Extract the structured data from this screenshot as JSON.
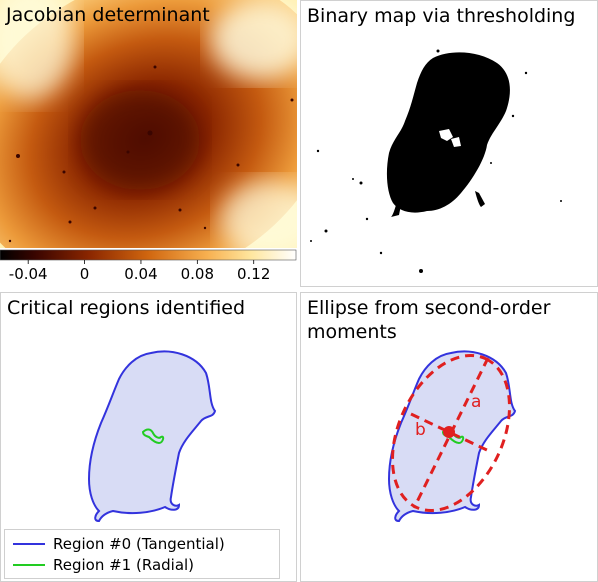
{
  "panels": {
    "jacobian": {
      "title": "Jacobian determinant"
    },
    "binary": {
      "title": "Binary map via thresholding"
    },
    "critical": {
      "title": "Critical regions identified"
    },
    "ellipse": {
      "title_line1": "Ellipse from second-order",
      "title_line2": "moments",
      "label_a": "a",
      "label_b": "b"
    }
  },
  "colorbar": {
    "ticks": [
      "-0.04",
      "0",
      "0.04",
      "0.08",
      "0.12"
    ],
    "tick_values": [
      -0.04,
      0,
      0.04,
      0.08,
      0.12
    ],
    "range": [
      -0.06,
      0.15
    ]
  },
  "legend": {
    "items": [
      {
        "label": "Region #0 (Tangential)",
        "color": "#3333dd"
      },
      {
        "label": "Region #1 (Radial)",
        "color": "#22cc22"
      }
    ]
  },
  "colors": {
    "region0": "#3333dd",
    "region1": "#22cc22",
    "fill": "#d8dcf5",
    "ellipse": "#e02020"
  }
}
